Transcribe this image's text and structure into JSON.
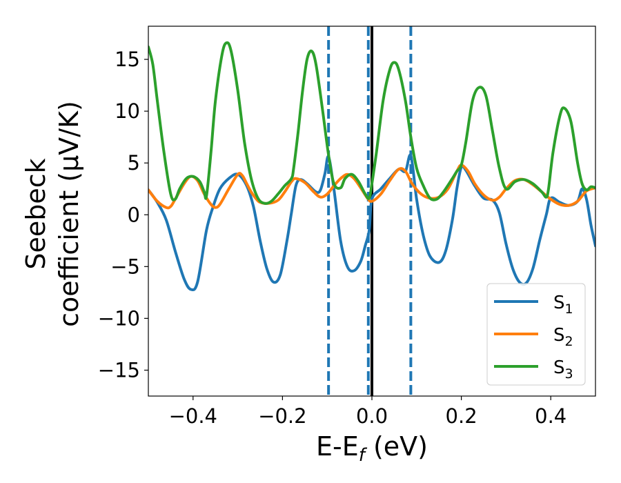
{
  "chart_data": {
    "type": "line",
    "xlabel": "E-E",
    "xlabel_sub": "f",
    "xlabel_unit": " (eV)",
    "ylabel_line1": "Seebeck",
    "ylabel_line2": "coefficient  (μV/K)",
    "xlim": [
      -0.5,
      0.5
    ],
    "ylim": [
      -17.5,
      18.2
    ],
    "xticks": [
      -0.4,
      -0.2,
      0.0,
      0.2,
      0.4
    ],
    "xtick_labels": [
      "−0.4",
      "−0.2",
      "0.0",
      "0.2",
      "0.4"
    ],
    "yticks": [
      -15,
      -10,
      -5,
      0,
      5,
      10,
      15
    ],
    "ytick_labels": [
      "−15",
      "−10",
      "−5",
      "0",
      "5",
      "10",
      "15"
    ],
    "grid": false,
    "legend_position": "bottom-right",
    "vlines": [
      {
        "x": -0.097,
        "style": "dashed",
        "color": "#1f77b4"
      },
      {
        "x": -0.008,
        "style": "dashed",
        "color": "#1f77b4"
      },
      {
        "x": 0.0,
        "style": "solid",
        "color": "#000000"
      },
      {
        "x": 0.087,
        "style": "dashed",
        "color": "#1f77b4"
      }
    ],
    "series": [
      {
        "name": "S",
        "sub": "1",
        "color": "#1f77b4",
        "points": [
          [
            -0.5,
            2.4
          ],
          [
            -0.48,
            1.2
          ],
          [
            -0.46,
            -0.5
          ],
          [
            -0.44,
            -3.5
          ],
          [
            -0.42,
            -6.2
          ],
          [
            -0.405,
            -7.2
          ],
          [
            -0.39,
            -6.5
          ],
          [
            -0.37,
            -1.5
          ],
          [
            -0.355,
            0.8
          ],
          [
            -0.34,
            2.5
          ],
          [
            -0.32,
            3.5
          ],
          [
            -0.3,
            3.9
          ],
          [
            -0.28,
            2.8
          ],
          [
            -0.265,
            0.8
          ],
          [
            -0.25,
            -2.5
          ],
          [
            -0.235,
            -5.2
          ],
          [
            -0.22,
            -6.5
          ],
          [
            -0.205,
            -5.8
          ],
          [
            -0.19,
            -2.5
          ],
          [
            -0.18,
            0.2
          ],
          [
            -0.17,
            2.8
          ],
          [
            -0.16,
            3.4
          ],
          [
            -0.145,
            3.0
          ],
          [
            -0.125,
            2.2
          ],
          [
            -0.115,
            2.4
          ],
          [
            -0.105,
            4.0
          ],
          [
            -0.097,
            5.6
          ],
          [
            -0.085,
            2.5
          ],
          [
            -0.07,
            -2.5
          ],
          [
            -0.055,
            -5.0
          ],
          [
            -0.04,
            -5.4
          ],
          [
            -0.025,
            -4.5
          ],
          [
            -0.015,
            -3.0
          ],
          [
            -0.006,
            -1.5
          ],
          [
            0.0,
            1.5
          ],
          [
            0.02,
            2.5
          ],
          [
            0.04,
            3.5
          ],
          [
            0.06,
            4.4
          ],
          [
            0.075,
            4.2
          ],
          [
            0.087,
            5.7
          ],
          [
            0.1,
            1.5
          ],
          [
            0.115,
            -2.0
          ],
          [
            0.13,
            -4.0
          ],
          [
            0.15,
            -4.6
          ],
          [
            0.165,
            -3.5
          ],
          [
            0.18,
            -0.5
          ],
          [
            0.19,
            2.5
          ],
          [
            0.2,
            4.6
          ],
          [
            0.21,
            4.3
          ],
          [
            0.23,
            2.8
          ],
          [
            0.25,
            1.6
          ],
          [
            0.27,
            1.4
          ],
          [
            0.285,
            0.2
          ],
          [
            0.3,
            -2.8
          ],
          [
            0.315,
            -5.2
          ],
          [
            0.33,
            -6.5
          ],
          [
            0.345,
            -6.6
          ],
          [
            0.36,
            -5.2
          ],
          [
            0.375,
            -2.5
          ],
          [
            0.39,
            0.0
          ],
          [
            0.4,
            1.6
          ],
          [
            0.42,
            1.2
          ],
          [
            0.44,
            0.9
          ],
          [
            0.46,
            1.3
          ],
          [
            0.47,
            2.5
          ],
          [
            0.48,
            1.5
          ],
          [
            0.49,
            -1.0
          ],
          [
            0.5,
            -3.0
          ]
        ]
      },
      {
        "name": "S",
        "sub": "2",
        "color": "#ff7f0e",
        "points": [
          [
            -0.5,
            2.4
          ],
          [
            -0.48,
            1.3
          ],
          [
            -0.46,
            0.7
          ],
          [
            -0.45,
            0.8
          ],
          [
            -0.44,
            1.5
          ],
          [
            -0.42,
            3.0
          ],
          [
            -0.405,
            3.7
          ],
          [
            -0.39,
            3.3
          ],
          [
            -0.375,
            2.0
          ],
          [
            -0.36,
            1.0
          ],
          [
            -0.35,
            0.7
          ],
          [
            -0.34,
            1.0
          ],
          [
            -0.32,
            2.5
          ],
          [
            -0.3,
            3.9
          ],
          [
            -0.29,
            3.8
          ],
          [
            -0.28,
            3.0
          ],
          [
            -0.27,
            2.2
          ],
          [
            -0.26,
            1.6
          ],
          [
            -0.25,
            1.2
          ],
          [
            -0.23,
            1.1
          ],
          [
            -0.21,
            1.4
          ],
          [
            -0.195,
            2.2
          ],
          [
            -0.18,
            3.2
          ],
          [
            -0.17,
            3.5
          ],
          [
            -0.15,
            3.1
          ],
          [
            -0.13,
            2.2
          ],
          [
            -0.115,
            1.7
          ],
          [
            -0.1,
            2.0
          ],
          [
            -0.085,
            2.8
          ],
          [
            -0.07,
            3.5
          ],
          [
            -0.055,
            3.9
          ],
          [
            -0.04,
            3.5
          ],
          [
            -0.025,
            2.6
          ],
          [
            -0.01,
            1.6
          ],
          [
            0.0,
            1.3
          ],
          [
            0.02,
            2.0
          ],
          [
            0.04,
            3.3
          ],
          [
            0.06,
            4.4
          ],
          [
            0.075,
            4.2
          ],
          [
            0.09,
            3.0
          ],
          [
            0.11,
            2.0
          ],
          [
            0.13,
            1.6
          ],
          [
            0.15,
            1.7
          ],
          [
            0.17,
            2.5
          ],
          [
            0.19,
            4.2
          ],
          [
            0.2,
            4.8
          ],
          [
            0.215,
            4.2
          ],
          [
            0.23,
            3.0
          ],
          [
            0.25,
            1.9
          ],
          [
            0.27,
            1.4
          ],
          [
            0.285,
            1.7
          ],
          [
            0.3,
            2.5
          ],
          [
            0.32,
            3.3
          ],
          [
            0.34,
            3.4
          ],
          [
            0.36,
            2.9
          ],
          [
            0.38,
            2.2
          ],
          [
            0.4,
            1.5
          ],
          [
            0.42,
            1.0
          ],
          [
            0.44,
            0.9
          ],
          [
            0.46,
            1.3
          ],
          [
            0.48,
            2.3
          ],
          [
            0.5,
            2.6
          ]
        ]
      },
      {
        "name": "S",
        "sub": "3",
        "color": "#2ca02c",
        "points": [
          [
            -0.5,
            16.2
          ],
          [
            -0.49,
            14.5
          ],
          [
            -0.48,
            11.0
          ],
          [
            -0.465,
            6.0
          ],
          [
            -0.45,
            2.0
          ],
          [
            -0.44,
            1.5
          ],
          [
            -0.43,
            2.5
          ],
          [
            -0.415,
            3.5
          ],
          [
            -0.4,
            3.7
          ],
          [
            -0.385,
            3.2
          ],
          [
            -0.375,
            2.2
          ],
          [
            -0.37,
            1.8
          ],
          [
            -0.36,
            6.0
          ],
          [
            -0.35,
            11.0
          ],
          [
            -0.335,
            15.5
          ],
          [
            -0.325,
            16.6
          ],
          [
            -0.315,
            15.8
          ],
          [
            -0.3,
            12.0
          ],
          [
            -0.285,
            7.0
          ],
          [
            -0.27,
            3.5
          ],
          [
            -0.255,
            1.6
          ],
          [
            -0.24,
            1.1
          ],
          [
            -0.225,
            1.3
          ],
          [
            -0.21,
            2.0
          ],
          [
            -0.195,
            2.8
          ],
          [
            -0.18,
            3.5
          ],
          [
            -0.175,
            4.5
          ],
          [
            -0.165,
            8.0
          ],
          [
            -0.155,
            12.0
          ],
          [
            -0.145,
            15.0
          ],
          [
            -0.135,
            15.8
          ],
          [
            -0.125,
            14.5
          ],
          [
            -0.11,
            10.0
          ],
          [
            -0.097,
            5.8
          ],
          [
            -0.085,
            3.0
          ],
          [
            -0.07,
            2.6
          ],
          [
            -0.06,
            3.5
          ],
          [
            -0.045,
            3.9
          ],
          [
            -0.03,
            3.2
          ],
          [
            -0.015,
            2.0
          ],
          [
            -0.006,
            1.6
          ],
          [
            0.0,
            3.0
          ],
          [
            0.01,
            6.0
          ],
          [
            0.025,
            11.0
          ],
          [
            0.04,
            14.0
          ],
          [
            0.05,
            14.7
          ],
          [
            0.06,
            14.0
          ],
          [
            0.075,
            11.0
          ],
          [
            0.087,
            7.5
          ],
          [
            0.1,
            4.5
          ],
          [
            0.115,
            2.8
          ],
          [
            0.13,
            1.6
          ],
          [
            0.145,
            1.5
          ],
          [
            0.16,
            2.2
          ],
          [
            0.18,
            3.5
          ],
          [
            0.19,
            4.2
          ],
          [
            0.2,
            4.8
          ],
          [
            0.21,
            7.0
          ],
          [
            0.225,
            11.0
          ],
          [
            0.24,
            12.3
          ],
          [
            0.255,
            11.5
          ],
          [
            0.27,
            8.0
          ],
          [
            0.285,
            4.5
          ],
          [
            0.3,
            2.5
          ],
          [
            0.32,
            3.2
          ],
          [
            0.34,
            3.4
          ],
          [
            0.36,
            3.0
          ],
          [
            0.38,
            2.2
          ],
          [
            0.39,
            1.7
          ],
          [
            0.395,
            2.5
          ],
          [
            0.405,
            6.0
          ],
          [
            0.42,
            9.5
          ],
          [
            0.43,
            10.3
          ],
          [
            0.445,
            9.0
          ],
          [
            0.46,
            5.0
          ],
          [
            0.47,
            3.0
          ],
          [
            0.48,
            2.4
          ],
          [
            0.49,
            2.7
          ],
          [
            0.5,
            2.6
          ]
        ]
      }
    ]
  }
}
